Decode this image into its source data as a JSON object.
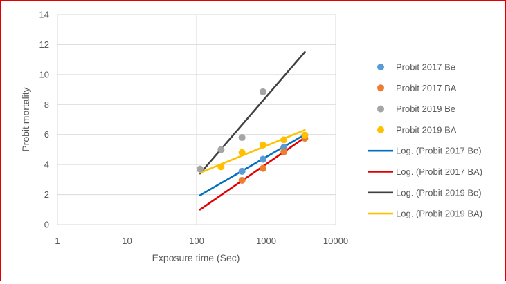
{
  "chart_data": {
    "type": "scatter",
    "xscale": "log",
    "xlim": [
      1,
      10000
    ],
    "ylim": [
      0,
      14
    ],
    "xticks": [
      1,
      10,
      100,
      1000,
      10000
    ],
    "yticks": [
      0,
      2,
      4,
      6,
      8,
      10,
      12,
      14
    ],
    "xtick_labels": [
      "1",
      "10",
      "100",
      "1000",
      "10000"
    ],
    "ytick_labels": [
      "0",
      "2",
      "4",
      "6",
      "8",
      "10",
      "12",
      "14"
    ],
    "xlabel": "Exposure time (Sec)",
    "ylabel": "Probit mortality",
    "grid": true,
    "legend_position": "right",
    "series": [
      {
        "name": "Probit 2017 Be",
        "kind": "points",
        "color": "#5b9bd5",
        "x": [
          450,
          900,
          1800,
          3600
        ],
        "y": [
          3.55,
          4.35,
          5.15,
          5.95
        ]
      },
      {
        "name": "Probit 2017 BA",
        "kind": "points",
        "color": "#ed7d31",
        "x": [
          450,
          900,
          1800,
          3600
        ],
        "y": [
          2.95,
          3.75,
          4.85,
          5.75
        ]
      },
      {
        "name": "Probit 2019 Be",
        "kind": "points",
        "color": "#a5a5a5",
        "x": [
          112,
          225,
          450,
          900
        ],
        "y": [
          3.7,
          5.0,
          5.8,
          8.85
        ]
      },
      {
        "name": "Probit 2019 BA",
        "kind": "points",
        "color": "#ffc000",
        "x": [
          225,
          450,
          900,
          1800,
          3600
        ],
        "y": [
          3.85,
          4.8,
          5.3,
          5.65,
          5.95
        ]
      },
      {
        "name": "Log. (Probit 2017 Be)",
        "kind": "trend",
        "color": "#0070c0",
        "x": [
          112,
          3600
        ],
        "y": [
          1.95,
          6.0
        ]
      },
      {
        "name": "Log. (Probit 2017 BA)",
        "kind": "trend",
        "color": "#e00000",
        "x": [
          112,
          3600
        ],
        "y": [
          1.0,
          5.8
        ]
      },
      {
        "name": "Log. (Probit 2019 Be)",
        "kind": "trend",
        "color": "#404040",
        "x": [
          112,
          3600
        ],
        "y": [
          3.4,
          11.5
        ]
      },
      {
        "name": "Log. (Probit 2019 BA)",
        "kind": "trend",
        "color": "#ffc000",
        "x": [
          112,
          3600
        ],
        "y": [
          3.45,
          6.3
        ]
      }
    ]
  }
}
